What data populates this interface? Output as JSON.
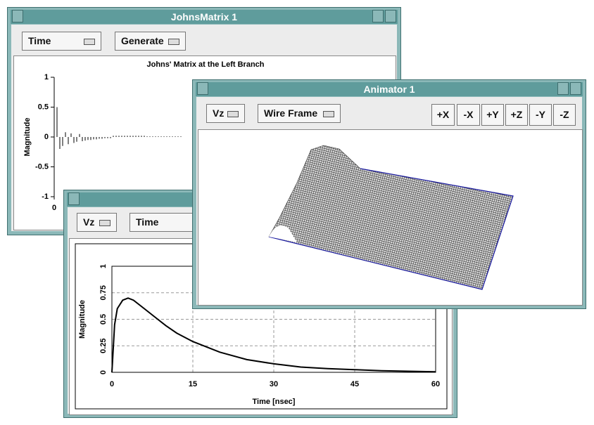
{
  "windows": [
    {
      "title": "JohnsMatrix 1",
      "buttons": [
        "Time",
        "Generate"
      ],
      "chart_data": {
        "type": "stem",
        "title": "Johns' Matrix at the Left Branch",
        "y_label": "Magnitude",
        "color": "#000000",
        "xlim": [
          0,
          120
        ],
        "xticks": [
          0
        ],
        "ylim": [
          -1,
          1
        ],
        "yticks": [
          -1,
          -0.5,
          0,
          0.5,
          1
        ],
        "x": [
          1,
          2,
          3,
          4,
          5,
          6,
          7,
          8,
          9,
          10,
          11,
          12,
          13,
          14,
          15,
          16,
          17,
          18,
          19,
          20,
          21,
          22,
          23,
          24,
          25,
          26,
          27,
          28,
          29,
          30,
          31,
          32,
          33,
          34,
          35,
          36,
          37,
          38,
          39,
          40,
          41,
          42,
          43,
          44,
          45
        ],
        "values": [
          0.5,
          -0.2,
          -0.15,
          0.08,
          -0.12,
          0.06,
          -0.1,
          -0.08,
          0.05,
          -0.07,
          -0.06,
          -0.05,
          -0.05,
          -0.04,
          -0.04,
          -0.03,
          -0.03,
          -0.02,
          -0.02,
          -0.02,
          0.02,
          0.02,
          0.02,
          0.02,
          0.02,
          0.02,
          0.02,
          0.02,
          0.02,
          0.02,
          0.02,
          0.02,
          0.01,
          0.01,
          0.01,
          0.01,
          0.01,
          0.01,
          0.01,
          0.01,
          0.01,
          0.01,
          0.01,
          0.01,
          0.01
        ]
      }
    },
    {
      "buttons": [
        "Vz",
        "Time"
      ],
      "chart_data": {
        "type": "line",
        "x_label": "Time [nsec]",
        "y_label": "Magnitude",
        "color": "#000000",
        "grid": true,
        "xlim": [
          0,
          60
        ],
        "xticks": [
          0,
          15,
          30,
          45,
          60
        ],
        "ylim": [
          0,
          1
        ],
        "yticks": [
          0,
          0.25,
          0.5,
          0.75,
          1
        ],
        "x": [
          0,
          0.5,
          1,
          2,
          3,
          4,
          6,
          8,
          10,
          12,
          15,
          20,
          25,
          30,
          35,
          40,
          45,
          50,
          55,
          60
        ],
        "values": [
          0,
          0.45,
          0.6,
          0.68,
          0.7,
          0.68,
          0.6,
          0.52,
          0.44,
          0.37,
          0.29,
          0.19,
          0.12,
          0.08,
          0.05,
          0.035,
          0.025,
          0.015,
          0.01,
          0.005
        ]
      }
    },
    {
      "title": "Animator 1",
      "buttons": [
        "Vz",
        "Wire Frame",
        "+X",
        "-X",
        "+Y",
        "+Z",
        "-Y",
        "-Z"
      ]
    }
  ]
}
